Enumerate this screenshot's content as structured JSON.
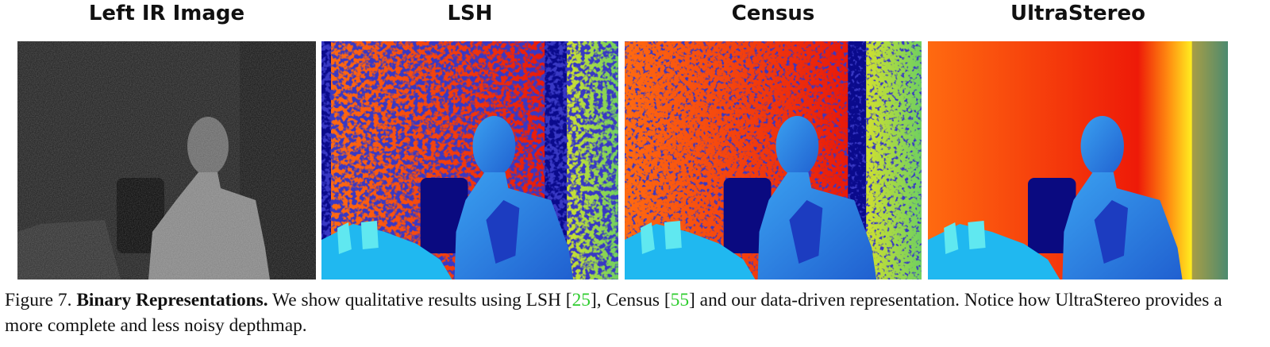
{
  "panels": [
    {
      "title": "Left IR Image"
    },
    {
      "title": "LSH"
    },
    {
      "title": "Census"
    },
    {
      "title": "UltraStereo"
    }
  ],
  "caption": {
    "label": "Figure 7.",
    "heading": "Binary Representations.",
    "segments": [
      {
        "text": " We show qualitative results using LSH ["
      },
      {
        "text": "25",
        "cite": true
      },
      {
        "text": "], Census ["
      },
      {
        "text": "55",
        "cite": true
      },
      {
        "text": "] and our data-driven representation. Notice how UltraStereo provides a more complete and less noisy depthmap."
      }
    ]
  }
}
